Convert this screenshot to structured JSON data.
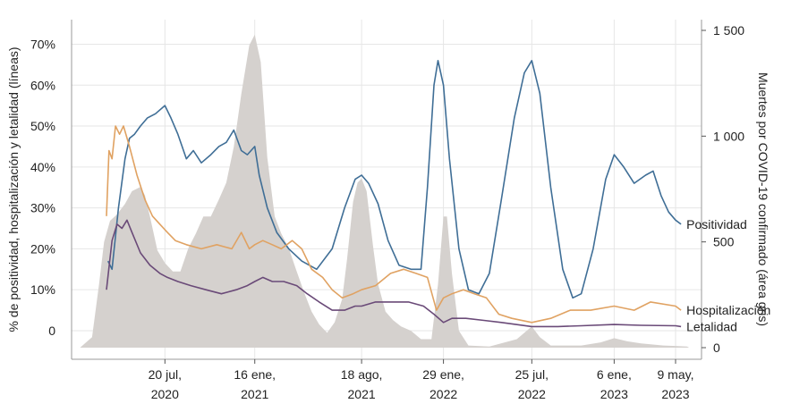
{
  "chart_data": {
    "type": "line",
    "xlabel": "",
    "ylabel_left": "% de positividad, hospitalización y letalidad (líneas)",
    "ylabel_right": "Muertes por COVID-19 confirmado (área gris)",
    "x_range": [
      "2020-01-15",
      "2023-06-30"
    ],
    "ylim_left": [
      -7,
      76
    ],
    "ylim_right": [
      0,
      1500
    ],
    "x_ticks": [
      {
        "date": "2020-07-20",
        "line1": "20 jul,",
        "line2": "2020"
      },
      {
        "date": "2021-01-16",
        "line1": "16 ene,",
        "line2": "2021"
      },
      {
        "date": "2021-08-18",
        "line1": "18 ago,",
        "line2": "2021"
      },
      {
        "date": "2022-01-29",
        "line1": "29 ene,",
        "line2": "2022"
      },
      {
        "date": "2022-07-25",
        "line1": "25 jul,",
        "line2": "2022"
      },
      {
        "date": "2023-01-06",
        "line1": "6 ene,",
        "line2": "2023"
      },
      {
        "date": "2023-05-09",
        "line1": "9 may,",
        "line2": "2023"
      }
    ],
    "left_ticks": [
      {
        "value": 0,
        "label": "0"
      },
      {
        "value": 10,
        "label": "10%"
      },
      {
        "value": 20,
        "label": "20%"
      },
      {
        "value": 30,
        "label": "30%"
      },
      {
        "value": 40,
        "label": "40%"
      },
      {
        "value": 50,
        "label": "50%"
      },
      {
        "value": 60,
        "label": "60%"
      },
      {
        "value": 70,
        "label": "70%"
      }
    ],
    "right_ticks": [
      {
        "value": 0,
        "label": "0"
      },
      {
        "value": 500,
        "label": "500"
      },
      {
        "value": 1000,
        "label": "1 000"
      },
      {
        "value": 1500,
        "label": "1 500"
      }
    ],
    "grid": true,
    "series": [
      {
        "name": "Positividad",
        "axis": "left",
        "color": "#3f6e96",
        "points": [
          [
            "2020-03-28",
            17
          ],
          [
            "2020-04-05",
            15
          ],
          [
            "2020-04-18",
            30
          ],
          [
            "2020-05-01",
            42
          ],
          [
            "2020-05-10",
            47
          ],
          [
            "2020-05-20",
            48
          ],
          [
            "2020-06-01",
            50
          ],
          [
            "2020-06-15",
            52
          ],
          [
            "2020-07-01",
            53
          ],
          [
            "2020-07-20",
            55
          ],
          [
            "2020-08-01",
            52
          ],
          [
            "2020-08-15",
            48
          ],
          [
            "2020-09-01",
            42
          ],
          [
            "2020-09-15",
            44
          ],
          [
            "2020-10-01",
            41
          ],
          [
            "2020-10-20",
            43
          ],
          [
            "2020-11-05",
            45
          ],
          [
            "2020-11-20",
            46
          ],
          [
            "2020-12-05",
            49
          ],
          [
            "2020-12-20",
            44
          ],
          [
            "2021-01-01",
            43
          ],
          [
            "2021-01-16",
            45
          ],
          [
            "2021-01-25",
            38
          ],
          [
            "2021-02-10",
            30
          ],
          [
            "2021-03-01",
            24
          ],
          [
            "2021-03-25",
            20
          ],
          [
            "2021-04-20",
            17
          ],
          [
            "2021-05-20",
            15
          ],
          [
            "2021-06-20",
            20
          ],
          [
            "2021-07-15",
            30
          ],
          [
            "2021-08-05",
            37
          ],
          [
            "2021-08-18",
            38
          ],
          [
            "2021-09-01",
            36
          ],
          [
            "2021-09-20",
            31
          ],
          [
            "2021-10-10",
            22
          ],
          [
            "2021-11-01",
            16
          ],
          [
            "2021-11-25",
            15
          ],
          [
            "2021-12-15",
            15
          ],
          [
            "2021-12-28",
            35
          ],
          [
            "2022-01-10",
            60
          ],
          [
            "2022-01-18",
            66
          ],
          [
            "2022-01-29",
            60
          ],
          [
            "2022-02-10",
            42
          ],
          [
            "2022-03-01",
            20
          ],
          [
            "2022-03-20",
            10
          ],
          [
            "2022-04-10",
            9
          ],
          [
            "2022-05-01",
            14
          ],
          [
            "2022-05-25",
            32
          ],
          [
            "2022-06-20",
            52
          ],
          [
            "2022-07-10",
            63
          ],
          [
            "2022-07-25",
            66
          ],
          [
            "2022-08-10",
            58
          ],
          [
            "2022-09-01",
            35
          ],
          [
            "2022-09-25",
            15
          ],
          [
            "2022-10-15",
            8
          ],
          [
            "2022-11-01",
            9
          ],
          [
            "2022-11-25",
            20
          ],
          [
            "2022-12-20",
            37
          ],
          [
            "2023-01-06",
            43
          ],
          [
            "2023-01-25",
            40
          ],
          [
            "2023-02-15",
            36
          ],
          [
            "2023-03-10",
            38
          ],
          [
            "2023-03-25",
            39
          ],
          [
            "2023-04-10",
            33
          ],
          [
            "2023-04-25",
            29
          ],
          [
            "2023-05-09",
            27
          ],
          [
            "2023-05-20",
            26
          ]
        ]
      },
      {
        "name": "Hospitalización",
        "axis": "left",
        "color": "#e0a262",
        "points": [
          [
            "2020-03-25",
            28
          ],
          [
            "2020-03-30",
            44
          ],
          [
            "2020-04-05",
            42
          ],
          [
            "2020-04-12",
            50
          ],
          [
            "2020-04-20",
            48
          ],
          [
            "2020-04-28",
            50
          ],
          [
            "2020-05-10",
            45
          ],
          [
            "2020-05-25",
            38
          ],
          [
            "2020-06-10",
            32
          ],
          [
            "2020-06-25",
            28
          ],
          [
            "2020-07-10",
            26
          ],
          [
            "2020-07-25",
            24
          ],
          [
            "2020-08-10",
            22
          ],
          [
            "2020-09-01",
            21
          ],
          [
            "2020-10-01",
            20
          ],
          [
            "2020-11-01",
            21
          ],
          [
            "2020-12-01",
            20
          ],
          [
            "2020-12-20",
            24
          ],
          [
            "2021-01-05",
            20
          ],
          [
            "2021-01-16",
            21
          ],
          [
            "2021-02-01",
            22
          ],
          [
            "2021-02-20",
            21
          ],
          [
            "2021-03-10",
            20
          ],
          [
            "2021-04-01",
            22
          ],
          [
            "2021-04-20",
            20
          ],
          [
            "2021-05-10",
            15
          ],
          [
            "2021-06-01",
            13
          ],
          [
            "2021-06-20",
            10
          ],
          [
            "2021-07-10",
            8
          ],
          [
            "2021-08-01",
            9
          ],
          [
            "2021-08-18",
            10
          ],
          [
            "2021-09-15",
            11
          ],
          [
            "2021-10-15",
            14
          ],
          [
            "2021-11-10",
            15
          ],
          [
            "2021-12-05",
            14
          ],
          [
            "2021-12-28",
            13
          ],
          [
            "2022-01-15",
            5
          ],
          [
            "2022-01-29",
            8
          ],
          [
            "2022-02-15",
            9
          ],
          [
            "2022-03-10",
            10
          ],
          [
            "2022-04-01",
            9
          ],
          [
            "2022-04-25",
            8
          ],
          [
            "2022-05-20",
            4
          ],
          [
            "2022-06-15",
            3
          ],
          [
            "2022-07-25",
            2
          ],
          [
            "2022-09-01",
            3
          ],
          [
            "2022-10-10",
            5
          ],
          [
            "2022-11-20",
            5
          ],
          [
            "2023-01-06",
            6
          ],
          [
            "2023-02-15",
            5
          ],
          [
            "2023-03-20",
            7
          ],
          [
            "2023-05-09",
            6
          ],
          [
            "2023-05-20",
            5
          ]
        ]
      },
      {
        "name": "Letalidad",
        "axis": "left",
        "color": "#6a4a78",
        "points": [
          [
            "2020-03-25",
            10
          ],
          [
            "2020-04-05",
            22
          ],
          [
            "2020-04-15",
            26
          ],
          [
            "2020-04-25",
            25
          ],
          [
            "2020-05-05",
            27
          ],
          [
            "2020-05-15",
            24
          ],
          [
            "2020-06-01",
            19
          ],
          [
            "2020-06-20",
            16
          ],
          [
            "2020-07-10",
            14
          ],
          [
            "2020-07-25",
            13
          ],
          [
            "2020-08-15",
            12
          ],
          [
            "2020-09-10",
            11
          ],
          [
            "2020-10-10",
            10
          ],
          [
            "2020-11-10",
            9
          ],
          [
            "2020-12-10",
            10
          ],
          [
            "2021-01-01",
            11
          ],
          [
            "2021-01-16",
            12
          ],
          [
            "2021-02-01",
            13
          ],
          [
            "2021-02-20",
            12
          ],
          [
            "2021-03-15",
            12
          ],
          [
            "2021-04-10",
            11
          ],
          [
            "2021-05-01",
            9
          ],
          [
            "2021-05-25",
            7
          ],
          [
            "2021-06-20",
            5
          ],
          [
            "2021-07-15",
            5
          ],
          [
            "2021-08-05",
            6
          ],
          [
            "2021-08-18",
            6
          ],
          [
            "2021-09-15",
            7
          ],
          [
            "2021-10-20",
            7
          ],
          [
            "2021-11-20",
            7
          ],
          [
            "2021-12-20",
            6
          ],
          [
            "2022-01-10",
            4
          ],
          [
            "2022-01-29",
            2
          ],
          [
            "2022-02-15",
            3
          ],
          [
            "2022-03-15",
            3
          ],
          [
            "2022-04-20",
            2.5
          ],
          [
            "2022-05-25",
            2
          ],
          [
            "2022-07-25",
            1
          ],
          [
            "2022-09-15",
            1
          ],
          [
            "2022-11-01",
            1.2
          ],
          [
            "2023-01-06",
            1.5
          ],
          [
            "2023-03-01",
            1.3
          ],
          [
            "2023-05-09",
            1.2
          ],
          [
            "2023-05-20",
            1
          ]
        ]
      },
      {
        "name": "Muertes por COVID-19 confirmado",
        "axis": "right",
        "color": "#d5d1ce",
        "type": "area",
        "points": [
          [
            "2020-02-01",
            0
          ],
          [
            "2020-02-25",
            50
          ],
          [
            "2020-03-10",
            300
          ],
          [
            "2020-03-20",
            500
          ],
          [
            "2020-04-01",
            600
          ],
          [
            "2020-04-15",
            630
          ],
          [
            "2020-05-01",
            680
          ],
          [
            "2020-05-15",
            740
          ],
          [
            "2020-06-01",
            760
          ],
          [
            "2020-06-10",
            720
          ],
          [
            "2020-06-20",
            620
          ],
          [
            "2020-07-05",
            460
          ],
          [
            "2020-07-20",
            400
          ],
          [
            "2020-08-05",
            360
          ],
          [
            "2020-08-20",
            360
          ],
          [
            "2020-09-05",
            470
          ],
          [
            "2020-09-20",
            540
          ],
          [
            "2020-10-05",
            620
          ],
          [
            "2020-10-20",
            620
          ],
          [
            "2020-11-05",
            700
          ],
          [
            "2020-11-20",
            780
          ],
          [
            "2020-12-05",
            950
          ],
          [
            "2020-12-20",
            1200
          ],
          [
            "2021-01-05",
            1430
          ],
          [
            "2021-01-16",
            1480
          ],
          [
            "2021-01-28",
            1350
          ],
          [
            "2021-02-10",
            900
          ],
          [
            "2021-02-25",
            620
          ],
          [
            "2021-03-10",
            540
          ],
          [
            "2021-03-25",
            470
          ],
          [
            "2021-04-10",
            360
          ],
          [
            "2021-04-25",
            260
          ],
          [
            "2021-05-10",
            170
          ],
          [
            "2021-05-25",
            110
          ],
          [
            "2021-06-10",
            70
          ],
          [
            "2021-06-25",
            120
          ],
          [
            "2021-07-10",
            230
          ],
          [
            "2021-07-20",
            420
          ],
          [
            "2021-08-01",
            690
          ],
          [
            "2021-08-10",
            780
          ],
          [
            "2021-08-18",
            800
          ],
          [
            "2021-08-28",
            740
          ],
          [
            "2021-09-10",
            480
          ],
          [
            "2021-09-20",
            300
          ],
          [
            "2021-10-05",
            170
          ],
          [
            "2021-10-20",
            130
          ],
          [
            "2021-11-05",
            100
          ],
          [
            "2021-11-25",
            80
          ],
          [
            "2021-12-15",
            40
          ],
          [
            "2022-01-05",
            40
          ],
          [
            "2022-01-18",
            300
          ],
          [
            "2022-01-29",
            620
          ],
          [
            "2022-02-05",
            620
          ],
          [
            "2022-02-15",
            350
          ],
          [
            "2022-03-01",
            80
          ],
          [
            "2022-03-20",
            10
          ],
          [
            "2022-05-01",
            5
          ],
          [
            "2022-06-25",
            40
          ],
          [
            "2022-07-25",
            100
          ],
          [
            "2022-08-10",
            50
          ],
          [
            "2022-09-01",
            10
          ],
          [
            "2022-11-01",
            10
          ],
          [
            "2022-12-10",
            25
          ],
          [
            "2023-01-06",
            45
          ],
          [
            "2023-02-01",
            30
          ],
          [
            "2023-03-01",
            20
          ],
          [
            "2023-04-15",
            10
          ],
          [
            "2023-05-09",
            8
          ],
          [
            "2023-06-01",
            5
          ],
          [
            "2023-06-05",
            0
          ]
        ]
      }
    ]
  }
}
